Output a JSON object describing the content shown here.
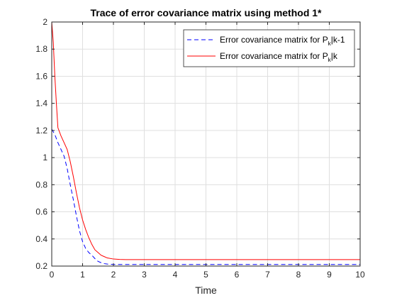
{
  "chart_data": {
    "type": "line",
    "title": "Trace of error covariance matrix using method 1*",
    "xlabel": "Time",
    "ylabel": "",
    "xlim": [
      0,
      10
    ],
    "ylim": [
      0.2,
      2
    ],
    "xticks": [
      0,
      1,
      2,
      3,
      4,
      5,
      6,
      7,
      8,
      9,
      10
    ],
    "xtick_labels": [
      "0",
      "1",
      "2",
      "3",
      "4",
      "5",
      "6",
      "7",
      "8",
      "9",
      "10"
    ],
    "yticks": [
      0.2,
      0.4,
      0.6,
      0.8,
      1.0,
      1.2,
      1.4,
      1.6,
      1.8,
      2.0
    ],
    "ytick_labels": [
      "0.2",
      "0.4",
      "0.6",
      "0.8",
      "1",
      "1.2",
      "1.4",
      "1.6",
      "1.8",
      "2"
    ],
    "grid": true,
    "legend_position": "top-right",
    "series": [
      {
        "name": "Error covariance matrix for P_k|k-1",
        "legend_prefix": "Error covariance matrix for P",
        "legend_sub": "k",
        "legend_suffix": "|k-1",
        "color": "#0000ff",
        "style": "dashed",
        "x": [
          0,
          0.1,
          0.2,
          0.3,
          0.4,
          0.5,
          0.6,
          0.7,
          0.8,
          0.9,
          1.0,
          1.1,
          1.2,
          1.3,
          1.4,
          1.5,
          1.6,
          1.7,
          1.8,
          1.9,
          2.0,
          2.2,
          2.5,
          3,
          4,
          5,
          6,
          7,
          8,
          9,
          10
        ],
        "y": [
          1.21,
          1.17,
          1.11,
          1.06,
          1.01,
          0.92,
          0.8,
          0.69,
          0.57,
          0.46,
          0.38,
          0.33,
          0.3,
          0.28,
          0.255,
          0.235,
          0.225,
          0.218,
          0.215,
          0.213,
          0.212,
          0.212,
          0.212,
          0.212,
          0.212,
          0.212,
          0.212,
          0.212,
          0.212,
          0.212,
          0.212
        ]
      },
      {
        "name": "Error covariance matrix for P_k|k",
        "legend_prefix": "Error covariance matrix for P",
        "legend_sub": "k",
        "legend_suffix": "|k",
        "color": "#ff0000",
        "style": "solid",
        "x": [
          0,
          0.05,
          0.1,
          0.15,
          0.2,
          0.3,
          0.4,
          0.5,
          0.6,
          0.7,
          0.8,
          0.9,
          1.0,
          1.1,
          1.2,
          1.3,
          1.4,
          1.5,
          1.6,
          1.7,
          1.8,
          2.0,
          2.2,
          2.4,
          3,
          4,
          5,
          6,
          7,
          8,
          9,
          10
        ],
        "y": [
          2.0,
          1.85,
          1.6,
          1.4,
          1.22,
          1.16,
          1.11,
          1.06,
          0.97,
          0.86,
          0.74,
          0.63,
          0.54,
          0.47,
          0.41,
          0.36,
          0.32,
          0.3,
          0.28,
          0.27,
          0.26,
          0.252,
          0.249,
          0.248,
          0.248,
          0.248,
          0.248,
          0.248,
          0.248,
          0.248,
          0.248,
          0.248
        ]
      }
    ]
  }
}
